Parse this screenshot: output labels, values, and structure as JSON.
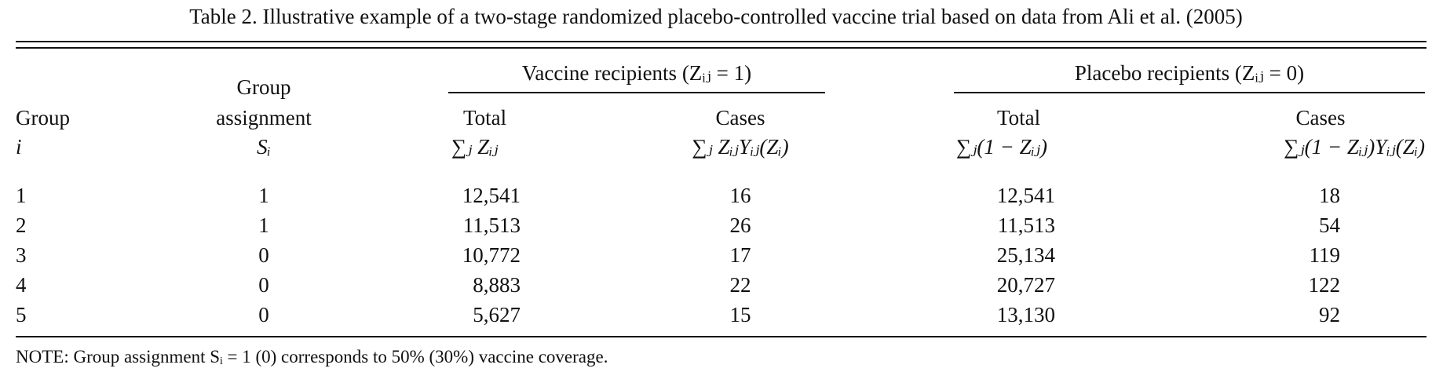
{
  "caption": "Table 2.  Illustrative example of a two-stage randomized placebo-controlled vaccine trial based on data from Ali et al. (2005)",
  "spanners": {
    "vaccine": "Vaccine recipients (Zᵢⱼ = 1)",
    "placebo": "Placebo recipients (Zᵢⱼ = 0)"
  },
  "headers": {
    "group_line1": "Group",
    "group_line2": "i",
    "assign_line1": "Group",
    "assign_line2": "assignment",
    "assign_line3": "Sᵢ",
    "vac_total": "Total",
    "vac_total_formula": "∑ⱼ Zᵢⱼ",
    "vac_cases": "Cases",
    "vac_cases_formula": "∑ⱼ ZᵢⱼYᵢⱼ(Zᵢ)",
    "pla_total": "Total",
    "pla_total_formula": "∑ⱼ(1 − Zᵢⱼ)",
    "pla_cases": "Cases",
    "pla_cases_formula": "∑ⱼ(1 − Zᵢⱼ)Yᵢⱼ(Zᵢ)"
  },
  "rows": [
    {
      "group": "1",
      "assignment": "1",
      "vac_total": "12,541",
      "vac_cases": "16",
      "pla_total": "12,541",
      "pla_cases": "18"
    },
    {
      "group": "2",
      "assignment": "1",
      "vac_total": "11,513",
      "vac_cases": "26",
      "pla_total": "11,513",
      "pla_cases": "54"
    },
    {
      "group": "3",
      "assignment": "0",
      "vac_total": "10,772",
      "vac_cases": "17",
      "pla_total": "25,134",
      "pla_cases": "119"
    },
    {
      "group": "4",
      "assignment": "0",
      "vac_total": "8,883",
      "vac_cases": "22",
      "pla_total": "20,727",
      "pla_cases": "122"
    },
    {
      "group": "5",
      "assignment": "0",
      "vac_total": "5,627",
      "vac_cases": "15",
      "pla_total": "13,130",
      "pla_cases": "92"
    }
  ],
  "note": "NOTE: Group assignment Sᵢ = 1 (0) corresponds to 50% (30%) vaccine coverage."
}
